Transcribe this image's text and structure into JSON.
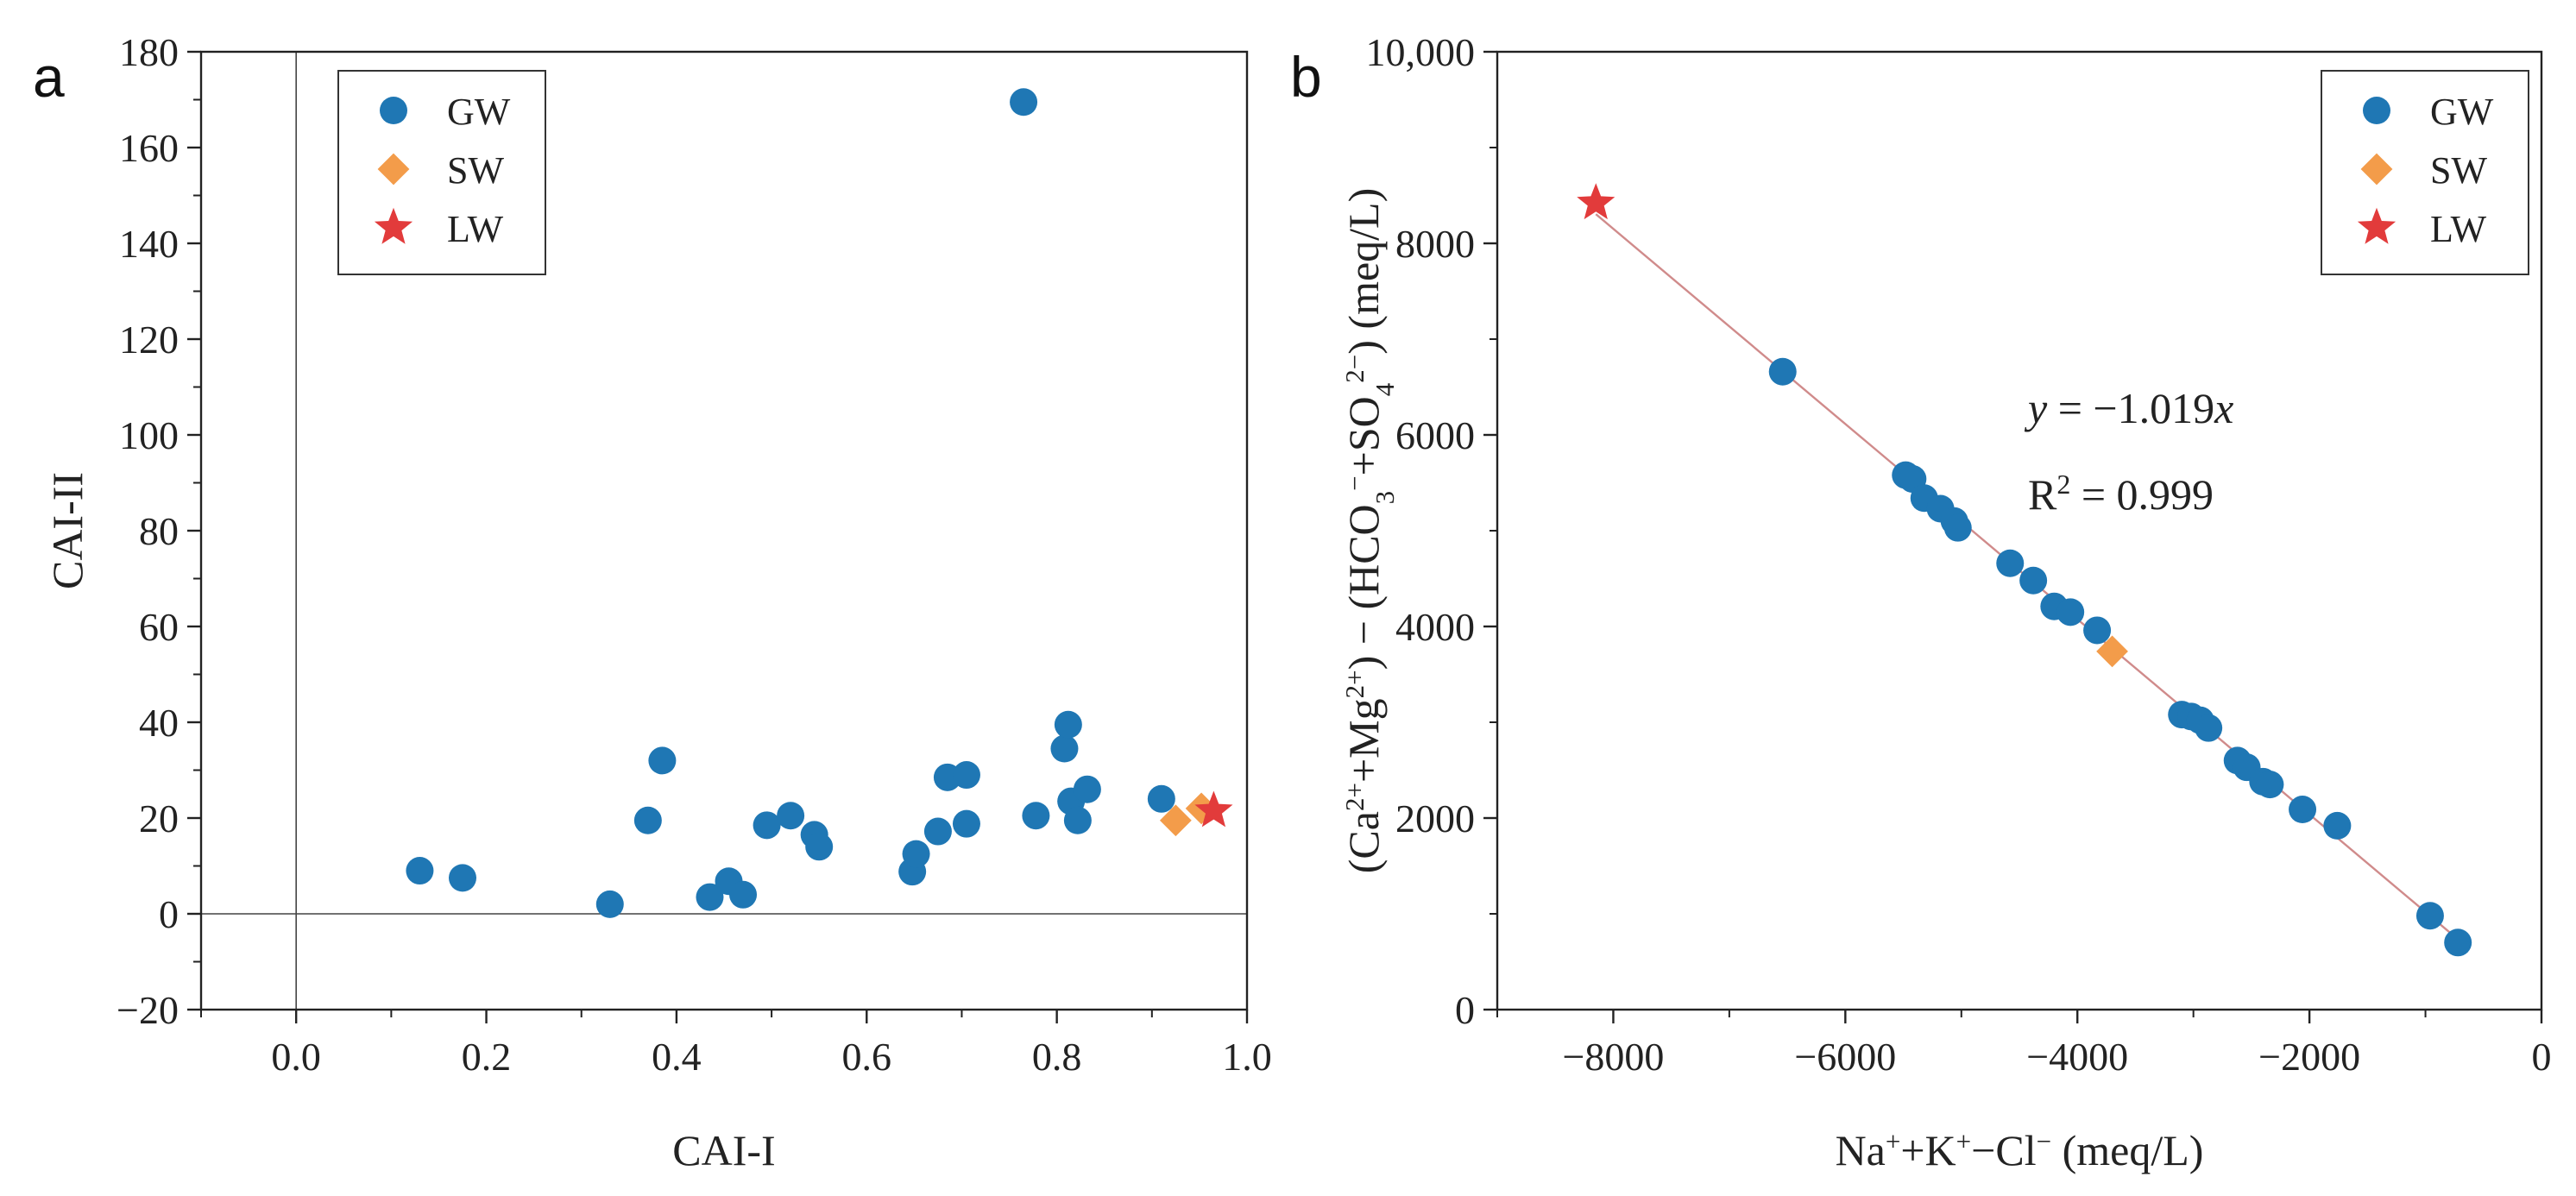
{
  "chart_data": [
    {
      "panel": "a",
      "type": "scatter",
      "xlabel": "CAI-I",
      "ylabel": "CAI-II",
      "xlim": [
        -0.1,
        1.0
      ],
      "ylim": [
        -20,
        180
      ],
      "xticks": [
        0.0,
        0.2,
        0.4,
        0.6,
        0.8,
        1.0
      ],
      "xtick_labels": [
        "0.0",
        "0.2",
        "0.4",
        "0.6",
        "0.8",
        "1.0"
      ],
      "yticks": [
        -20,
        0,
        20,
        40,
        60,
        80,
        100,
        120,
        140,
        160,
        180
      ],
      "ytick_labels": [
        "−20",
        "0",
        "20",
        "40",
        "60",
        "80",
        "100",
        "120",
        "140",
        "160",
        "180"
      ],
      "reference_lines": {
        "x": 0,
        "y": 0
      },
      "legend": {
        "position": "top-left",
        "entries": [
          "GW",
          "SW",
          "LW"
        ]
      },
      "series": [
        {
          "name": "GW",
          "marker": "circle",
          "color": "#1f77b4",
          "points": [
            [
              0.13,
              9
            ],
            [
              0.175,
              7.5
            ],
            [
              0.33,
              2
            ],
            [
              0.37,
              19.5
            ],
            [
              0.385,
              32
            ],
            [
              0.435,
              3.5
            ],
            [
              0.455,
              6.8
            ],
            [
              0.47,
              4
            ],
            [
              0.495,
              18.5
            ],
            [
              0.52,
              20.5
            ],
            [
              0.545,
              16.5
            ],
            [
              0.55,
              14
            ],
            [
              0.648,
              8.8
            ],
            [
              0.652,
              12.5
            ],
            [
              0.675,
              17.2
            ],
            [
              0.685,
              28.5
            ],
            [
              0.705,
              29
            ],
            [
              0.705,
              18.8
            ],
            [
              0.765,
              169.5
            ],
            [
              0.778,
              20.5
            ],
            [
              0.808,
              34.5
            ],
            [
              0.812,
              39.5
            ],
            [
              0.815,
              23.5
            ],
            [
              0.822,
              19.5
            ],
            [
              0.832,
              26
            ],
            [
              0.91,
              24
            ]
          ]
        },
        {
          "name": "SW",
          "marker": "diamond",
          "color": "#f39c4a",
          "points": [
            [
              0.925,
              19.5
            ],
            [
              0.952,
              22
            ]
          ]
        },
        {
          "name": "LW",
          "marker": "star",
          "color": "#e23b3b",
          "points": [
            [
              0.965,
              21.5
            ]
          ]
        }
      ]
    },
    {
      "panel": "b",
      "type": "scatter",
      "xlabel": {
        "parts": [
          "Na",
          "+",
          "+K",
          "+",
          "−Cl",
          "−",
          "   (meq/L)"
        ]
      },
      "ylabel": {
        "parts": [
          "(Ca",
          "2+",
          "+Mg",
          "2+",
          ") − (HCO",
          "3",
          "−",
          "+SO",
          "4",
          "2−",
          ")   (meq/L)"
        ]
      },
      "xlim": [
        -9000,
        0
      ],
      "ylim": [
        0,
        10000
      ],
      "xticks": [
        -8000,
        -6000,
        -4000,
        -2000,
        0
      ],
      "xtick_labels": [
        "−8000",
        "−6000",
        "−4000",
        "−2000",
        "0"
      ],
      "yticks": [
        0,
        2000,
        4000,
        6000,
        8000,
        10000
      ],
      "ytick_labels": [
        "0",
        "2000",
        "4000",
        "6000",
        "8000",
        "10,000"
      ],
      "legend": {
        "position": "top-right",
        "entries": [
          "GW",
          "SW",
          "LW"
        ]
      },
      "fit_line": {
        "slope": -1.019,
        "x_range": [
          -8150,
          -700
        ],
        "color": "#d08b8b"
      },
      "annotation": {
        "equation_lhs": "y",
        "equation_rhs": " = −1.019",
        "equation_var": "x",
        "r2_label": "R",
        "r2_sup": "2",
        "r2_value": " = 0.999"
      },
      "series": [
        {
          "name": "GW",
          "marker": "circle",
          "color": "#1f77b4",
          "points": [
            [
              -6540,
              6660
            ],
            [
              -5480,
              5580
            ],
            [
              -5420,
              5540
            ],
            [
              -5320,
              5340
            ],
            [
              -5180,
              5230
            ],
            [
              -5060,
              5100
            ],
            [
              -5030,
              5030
            ],
            [
              -4580,
              4660
            ],
            [
              -4380,
              4480
            ],
            [
              -4200,
              4210
            ],
            [
              -4060,
              4150
            ],
            [
              -3830,
              3960
            ],
            [
              -3100,
              3080
            ],
            [
              -3020,
              3060
            ],
            [
              -2940,
              3020
            ],
            [
              -2870,
              2940
            ],
            [
              -2620,
              2600
            ],
            [
              -2540,
              2530
            ],
            [
              -2400,
              2380
            ],
            [
              -2340,
              2350
            ],
            [
              -2060,
              2090
            ],
            [
              -1760,
              1920
            ],
            [
              -960,
              980
            ],
            [
              -720,
              700
            ]
          ]
        },
        {
          "name": "SW",
          "marker": "diamond",
          "color": "#f39c4a",
          "points": [
            [
              -3700,
              3740
            ]
          ]
        },
        {
          "name": "LW",
          "marker": "star",
          "color": "#e23b3b",
          "points": [
            [
              -8150,
              8420
            ]
          ]
        }
      ]
    }
  ]
}
